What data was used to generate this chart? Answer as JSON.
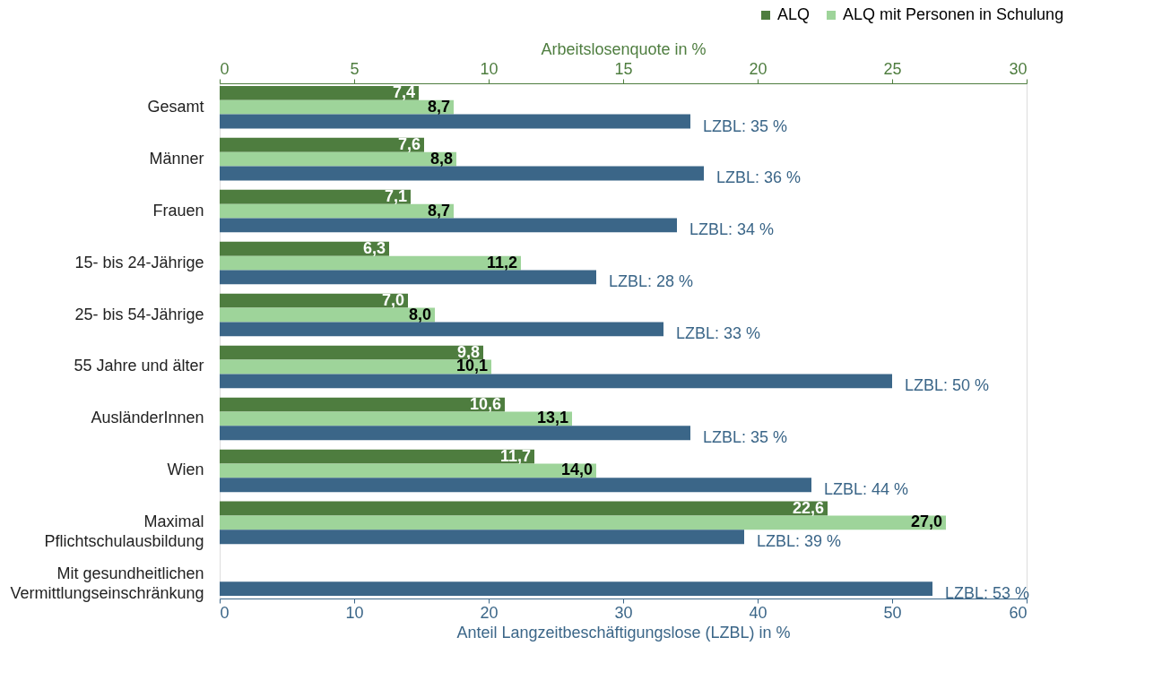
{
  "chart_data": {
    "type": "bar",
    "orientation": "horizontal",
    "categories": [
      "Gesamt",
      "Männer",
      "Frauen",
      "15- bis 24-Jährige",
      "25- bis 54-Jährige",
      "55 Jahre und älter",
      "AusländerInnen",
      "Wien",
      "Maximal\nPflichtschulausbildung",
      "Mit gesundheitlichen\nVermittlungseinschränkung"
    ],
    "xlabel": "Anteil Langzeitbeschäftigungslose (LZBL) in %",
    "x2label": "Arbeitslosenquote in %",
    "xlim": [
      0,
      60
    ],
    "xticks": [
      0,
      10,
      20,
      30,
      40,
      50,
      60
    ],
    "x2lim": [
      0,
      30
    ],
    "x2ticks": [
      0,
      5,
      10,
      15,
      20,
      25,
      30
    ],
    "legend": "top right",
    "grid": false,
    "series": [
      {
        "name": "ALQ",
        "color": "#4e7d3f",
        "axis": "x2",
        "values": [
          7.4,
          7.6,
          7.1,
          6.3,
          7.0,
          9.8,
          10.6,
          11.7,
          22.6,
          null
        ],
        "value_labels": [
          "7,4",
          "7,6",
          "7,1",
          "6,3",
          "7,0",
          "9,8",
          "10,6",
          "11,7",
          "22,6",
          null
        ]
      },
      {
        "name": "ALQ mit Personen in Schulung",
        "color": "#9ed49a",
        "axis": "x2",
        "values": [
          8.7,
          8.8,
          8.7,
          11.2,
          8.0,
          10.1,
          13.1,
          14.0,
          27.0,
          null
        ],
        "value_labels": [
          "8,7",
          "8,8",
          "8,7",
          "11,2",
          "8,0",
          "10,1",
          "13,1",
          "14,0",
          "27,0",
          null
        ]
      },
      {
        "color": "#3b6688",
        "values": [
          35,
          36,
          34,
          28,
          33,
          50,
          35,
          44,
          39,
          53
        ],
        "value_labels": [
          "LZBL: 35 %",
          "LZBL: 36 %",
          "LZBL: 34 %",
          "LZBL: 28 %",
          "LZBL: 33 %",
          "LZBL: 50 %",
          "LZBL: 35 %",
          "LZBL: 44 %",
          "LZBL: 39 %",
          "LZBL: 53 %"
        ]
      }
    ]
  }
}
